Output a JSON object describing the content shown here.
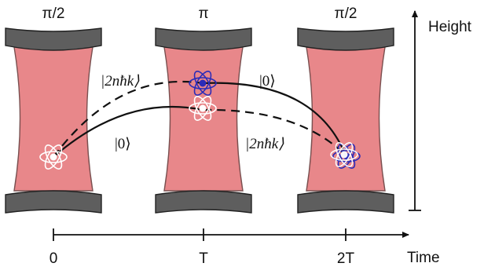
{
  "pulses": [
    {
      "label": "π/2"
    },
    {
      "label": "π"
    },
    {
      "label": "π/2"
    }
  ],
  "height_axis": {
    "label": "Height"
  },
  "time_axis": {
    "label": "Time",
    "ticks": [
      "0",
      "T",
      "2T"
    ]
  },
  "paths": {
    "upper_left_state": "|2nħk⟩",
    "upper_right_state": "|0⟩",
    "lower_left_state": "|0⟩",
    "lower_right_state": "|2nħk⟩"
  },
  "colors": {
    "cavity_fill": "#e8878a",
    "cavity_stroke": "#7a5050",
    "mirror_fill": "#5e5e5e",
    "atom_white": "#ffffff",
    "atom_blue": "#2b2bb8"
  }
}
